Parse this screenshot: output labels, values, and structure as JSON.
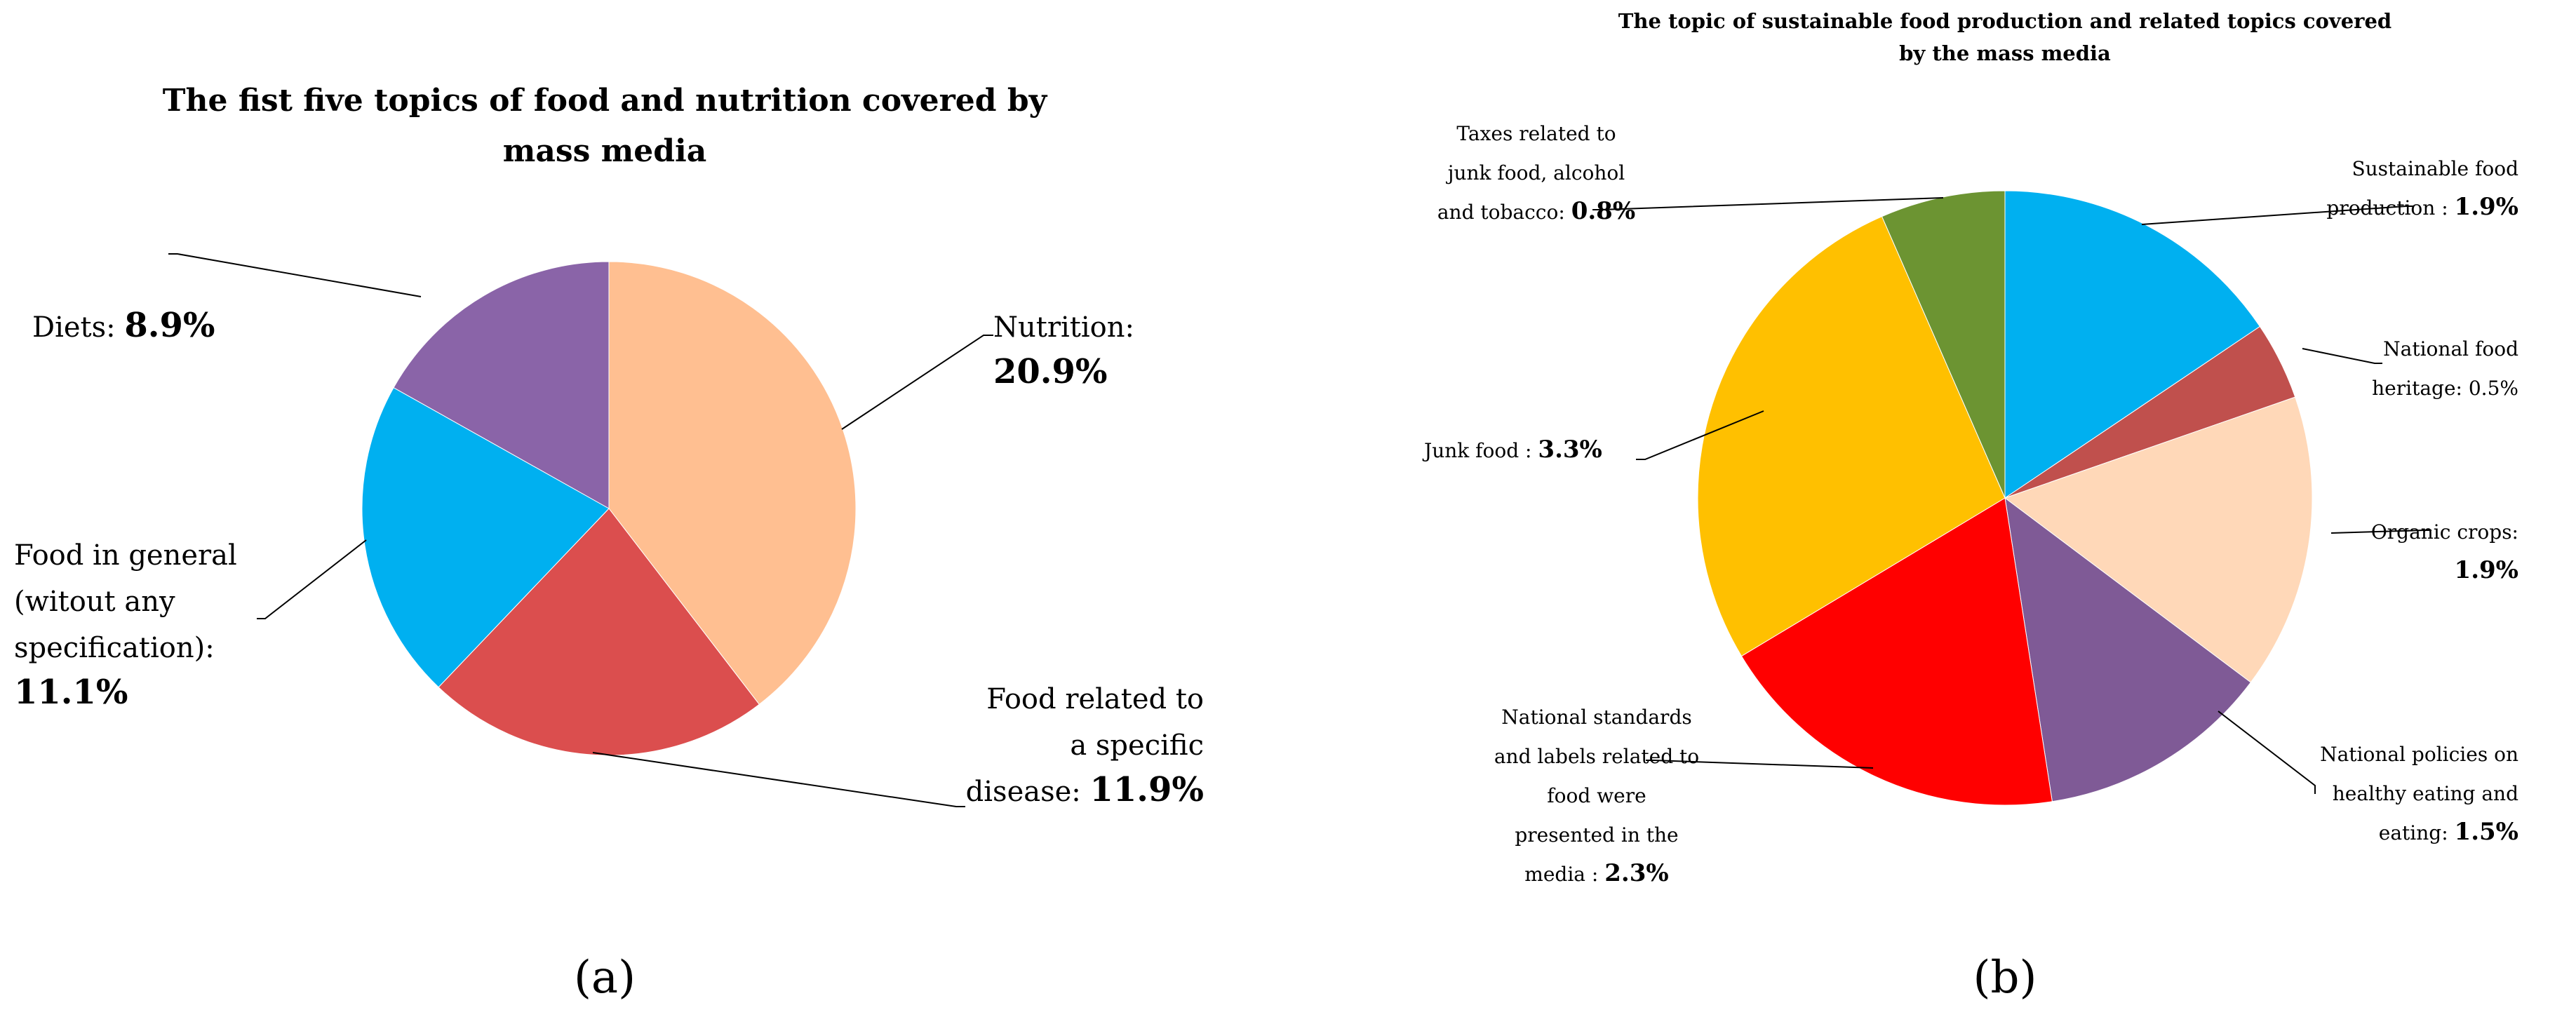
{
  "figure_labels": {
    "a": "(a)",
    "b": "(b)"
  },
  "chart_data": [
    {
      "type": "pie",
      "title_lines": [
        "The fist five topics of food and nutrition covered by",
        "mass media"
      ],
      "slices": [
        {
          "name": "Nutrition",
          "value": 20.9,
          "color": "#FFBF91",
          "label_lines": [
            [
              "Nutrition:"
            ],
            [
              "20.9%"
            ]
          ]
        },
        {
          "name": "Food related to a specific disease",
          "value": 11.9,
          "color": "#DB4E4E",
          "label_lines": [
            [
              "Food related to"
            ],
            [
              "a specific"
            ],
            [
              "disease: ",
              "11.9%"
            ]
          ]
        },
        {
          "name": "Food in general (witout any specification)",
          "value": 11.1,
          "color": "#00B0F0",
          "label_lines": [
            [
              "Food in general"
            ],
            [
              "(witout any"
            ],
            [
              "specification):"
            ],
            [
              "11.1%"
            ]
          ]
        },
        {
          "name": "Diets",
          "value": 8.9,
          "color": "#8A64A8",
          "label_lines": [
            [
              "Diets: ",
              "8.9%"
            ]
          ]
        }
      ]
    },
    {
      "type": "pie",
      "title_lines": [
        "The topic of sustainable food production and related topics covered",
        "by the mass media"
      ],
      "slices": [
        {
          "name": "Sustainable food production",
          "value": 1.9,
          "color": "#00B0F0",
          "label_lines": [
            [
              "Sustainable food"
            ],
            [
              "production : ",
              "1.9%"
            ]
          ]
        },
        {
          "name": "National food heritage",
          "value": 0.5,
          "color": "#C0504D",
          "label_lines": [
            [
              "National food"
            ],
            [
              "heritage: 0.5%"
            ]
          ]
        },
        {
          "name": "Organic crops",
          "value": 1.9,
          "color": "#FFD8B8",
          "label_lines": [
            [
              "Organic crops:"
            ],
            [
              "1.9%"
            ]
          ]
        },
        {
          "name": "National policies on healthy eating and eating",
          "value": 1.5,
          "color": "#7F5A96",
          "label_lines": [
            [
              "National policies on"
            ],
            [
              "healthy eating and"
            ],
            [
              "eating: ",
              "1.5%"
            ]
          ]
        },
        {
          "name": "National standards and labels related to food were presented in the media",
          "value": 2.3,
          "color": "#FF0000",
          "label_lines": [
            [
              "National standards"
            ],
            [
              "and labels related to"
            ],
            [
              "food were"
            ],
            [
              "presented in the"
            ],
            [
              "media : ",
              "2.3%"
            ]
          ]
        },
        {
          "name": "Junk food",
          "value": 3.3,
          "color": "#FFC000",
          "label_lines": [
            [
              "Junk food : ",
              "3.3%"
            ]
          ]
        },
        {
          "name": "Taxes related to junk food, alcohol and tobacco",
          "value": 0.8,
          "color": "#6C9432",
          "label_lines": [
            [
              "Taxes related to"
            ],
            [
              "junk food, alcohol"
            ],
            [
              "and tobacco: ",
              "0.8%"
            ]
          ]
        }
      ]
    }
  ]
}
